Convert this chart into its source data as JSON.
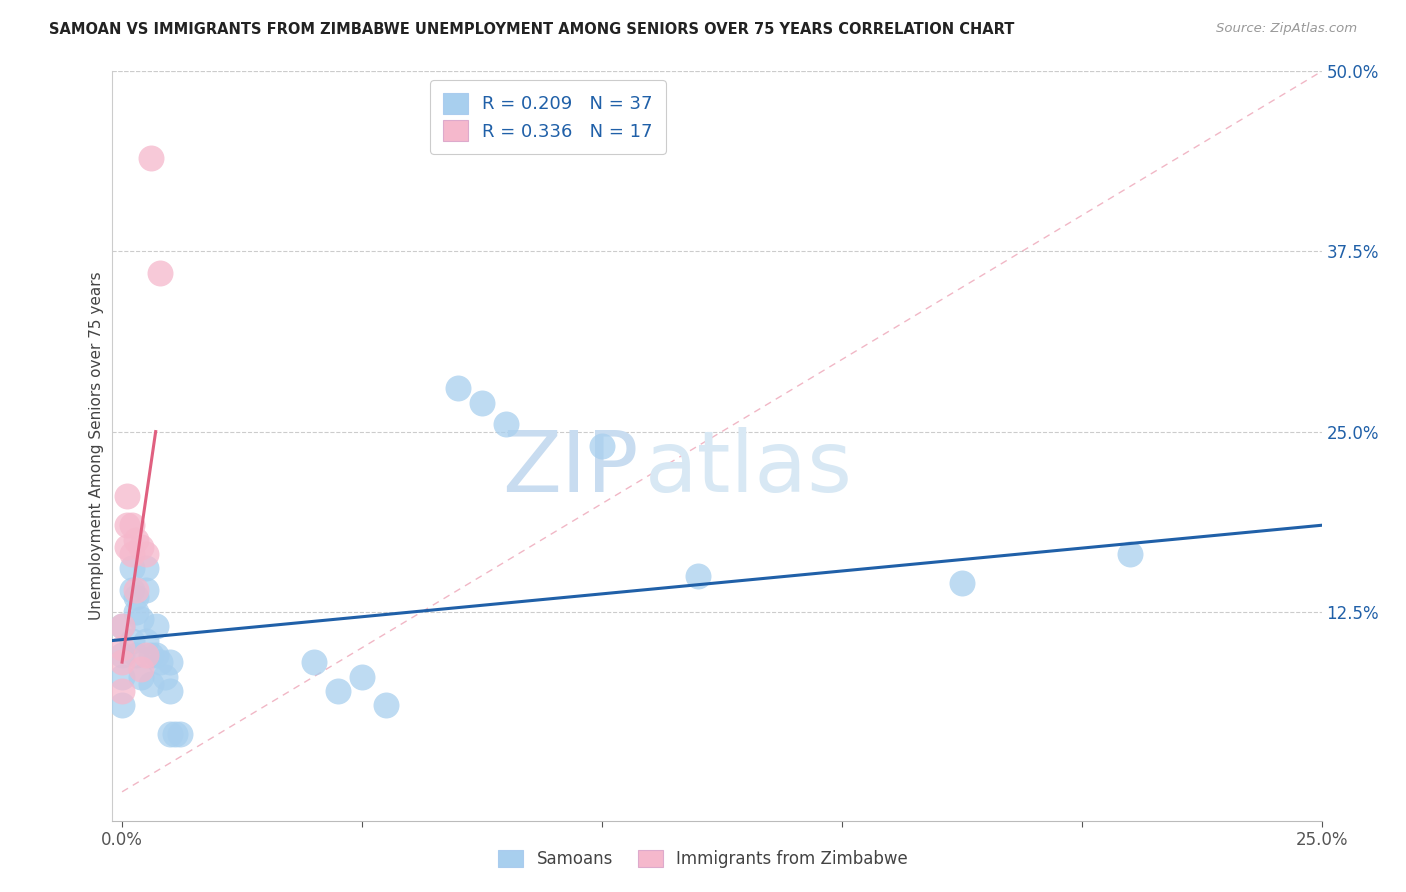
{
  "title": "SAMOAN VS IMMIGRANTS FROM ZIMBABWE UNEMPLOYMENT AMONG SENIORS OVER 75 YEARS CORRELATION CHART",
  "source": "Source: ZipAtlas.com",
  "ylabel": "Unemployment Among Seniors over 75 years",
  "xlim": [
    -0.002,
    0.25
  ],
  "ylim": [
    -0.02,
    0.5
  ],
  "ytick_labels_right": [
    "50.0%",
    "37.5%",
    "25.0%",
    "12.5%"
  ],
  "ytick_vals_right": [
    0.5,
    0.375,
    0.25,
    0.125
  ],
  "blue_R": 0.209,
  "blue_N": 37,
  "pink_R": 0.336,
  "pink_N": 17,
  "blue_color": "#A8CFEE",
  "pink_color": "#F5B8CC",
  "blue_line_color": "#2060A8",
  "pink_line_color": "#E06080",
  "legend_label_blue": "Samoans",
  "legend_label_pink": "Immigrants from Zimbabwe",
  "watermark_zip": "ZIP",
  "watermark_atlas": "atlas",
  "blue_scatter_x": [
    0.0,
    0.0,
    0.0,
    0.0,
    0.002,
    0.002,
    0.002,
    0.003,
    0.003,
    0.003,
    0.004,
    0.004,
    0.005,
    0.005,
    0.005,
    0.006,
    0.006,
    0.007,
    0.007,
    0.008,
    0.009,
    0.01,
    0.01,
    0.01,
    0.011,
    0.012,
    0.04,
    0.045,
    0.05,
    0.055,
    0.07,
    0.075,
    0.08,
    0.1,
    0.12,
    0.175,
    0.21
  ],
  "blue_scatter_y": [
    0.115,
    0.095,
    0.08,
    0.06,
    0.155,
    0.14,
    0.105,
    0.135,
    0.125,
    0.095,
    0.12,
    0.08,
    0.155,
    0.14,
    0.105,
    0.095,
    0.075,
    0.115,
    0.095,
    0.09,
    0.08,
    0.09,
    0.07,
    0.04,
    0.04,
    0.04,
    0.09,
    0.07,
    0.08,
    0.06,
    0.28,
    0.27,
    0.255,
    0.24,
    0.15,
    0.145,
    0.165
  ],
  "pink_scatter_x": [
    0.0,
    0.0,
    0.0,
    0.0,
    0.001,
    0.001,
    0.001,
    0.002,
    0.002,
    0.003,
    0.003,
    0.004,
    0.004,
    0.005,
    0.005,
    0.006,
    0.008
  ],
  "pink_scatter_y": [
    0.115,
    0.1,
    0.09,
    0.07,
    0.205,
    0.185,
    0.17,
    0.185,
    0.165,
    0.175,
    0.14,
    0.17,
    0.085,
    0.165,
    0.095,
    0.44,
    0.36
  ],
  "blue_line_x": [
    -0.002,
    0.25
  ],
  "blue_line_y": [
    0.105,
    0.185
  ],
  "pink_solid_line_x": [
    0.0,
    0.007
  ],
  "pink_solid_line_y": [
    0.09,
    0.25
  ],
  "pink_dash_line_x": [
    0.0,
    0.25
  ],
  "pink_dash_line_y": [
    0.0,
    0.5
  ]
}
